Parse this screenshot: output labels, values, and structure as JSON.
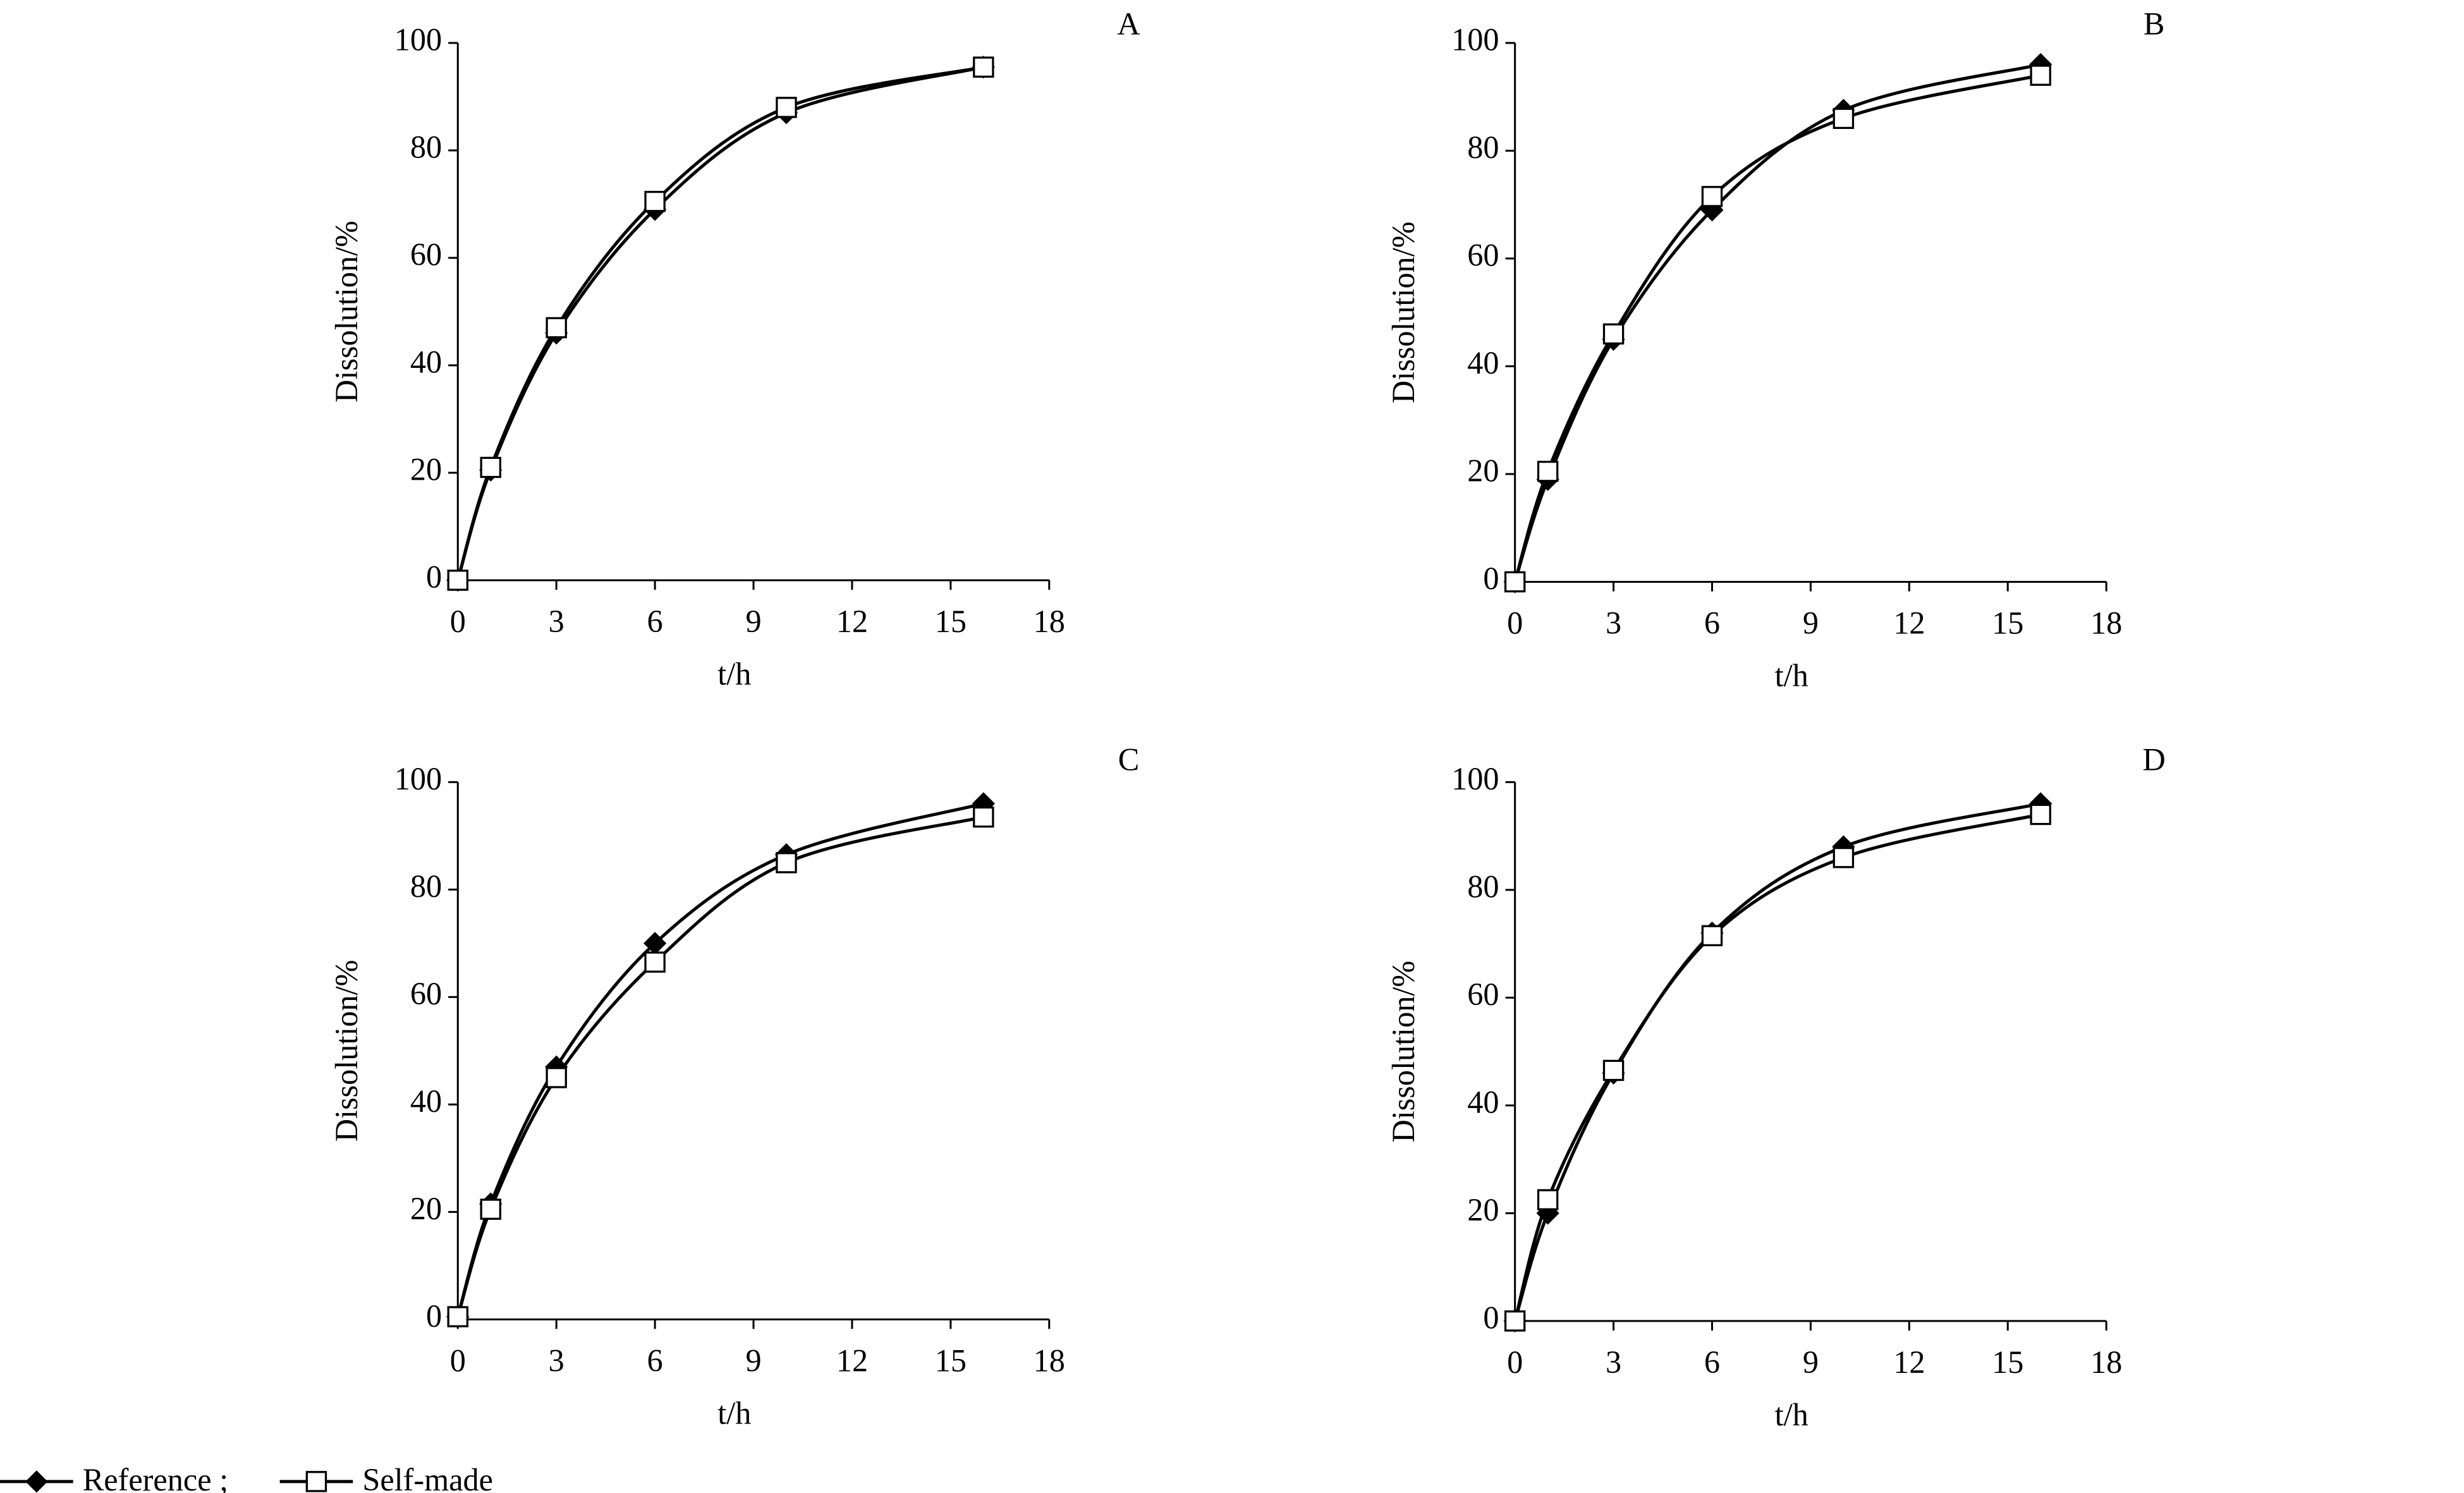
{
  "chart_data": [
    {
      "type": "line",
      "panel": "A",
      "x_label": "t/h",
      "y_label": "Dissolution/%",
      "x": [
        0,
        1,
        3,
        6,
        10,
        16
      ],
      "xlim": [
        0,
        18
      ],
      "xticks": [
        0,
        3,
        6,
        9,
        12,
        15,
        18
      ],
      "ylim": [
        0,
        100
      ],
      "yticks": [
        0,
        20,
        40,
        60,
        80,
        100
      ],
      "series": [
        {
          "name": "Reference ;",
          "color": "#000000",
          "marker": "diamond",
          "values": [
            0,
            20.5,
            46,
            69,
            87,
            95.5
          ]
        },
        {
          "name": "Self-made",
          "color": "#000000",
          "marker": "square",
          "values": [
            0,
            21,
            47,
            70.5,
            88,
            95.5
          ]
        }
      ]
    },
    {
      "type": "line",
      "panel": "B",
      "x_label": "t/h",
      "y_label": "Dissolution/%",
      "x": [
        0,
        1,
        3,
        6,
        10,
        16
      ],
      "xlim": [
        0,
        18
      ],
      "xticks": [
        0,
        3,
        6,
        9,
        12,
        15,
        18
      ],
      "ylim": [
        0,
        100
      ],
      "yticks": [
        0,
        20,
        40,
        60,
        80,
        100
      ],
      "series": [
        {
          "color": "#000000",
          "marker": "diamond",
          "values": [
            0,
            19,
            45,
            69,
            87.5,
            96
          ]
        },
        {
          "color": "#000000",
          "marker": "square",
          "values": [
            0,
            20.5,
            46,
            71.5,
            86,
            94
          ]
        }
      ]
    },
    {
      "type": "line",
      "panel": "C",
      "x_label": "t/h",
      "y_label": "Dissolution/%",
      "x": [
        0,
        1,
        3,
        6,
        10,
        16
      ],
      "xlim": [
        0,
        18
      ],
      "xticks": [
        0,
        3,
        6,
        9,
        12,
        15,
        18
      ],
      "ylim": [
        0,
        100
      ],
      "yticks": [
        0,
        20,
        40,
        60,
        80,
        100
      ],
      "series": [
        {
          "color": "#000000",
          "marker": "diamond",
          "values": [
            0.5,
            21.5,
            47,
            70,
            86.5,
            96
          ]
        },
        {
          "color": "#000000",
          "marker": "square",
          "values": [
            0.5,
            20.5,
            45,
            66.5,
            85,
            93.5
          ]
        }
      ]
    },
    {
      "type": "line",
      "panel": "D",
      "x_label": "t/h",
      "y_label": "Dissolution/%",
      "x": [
        0,
        1,
        3,
        6,
        10,
        16
      ],
      "xlim": [
        0,
        18
      ],
      "xticks": [
        0,
        3,
        6,
        9,
        12,
        15,
        18
      ],
      "ylim": [
        0,
        100
      ],
      "yticks": [
        0,
        20,
        40,
        60,
        80,
        100
      ],
      "series": [
        {
          "color": "#000000",
          "marker": "diamond",
          "values": [
            0,
            20,
            46,
            72,
            88,
            96
          ]
        },
        {
          "color": "#000000",
          "marker": "square",
          "values": [
            0,
            22.5,
            46.5,
            71.5,
            86,
            94
          ]
        }
      ]
    }
  ]
}
